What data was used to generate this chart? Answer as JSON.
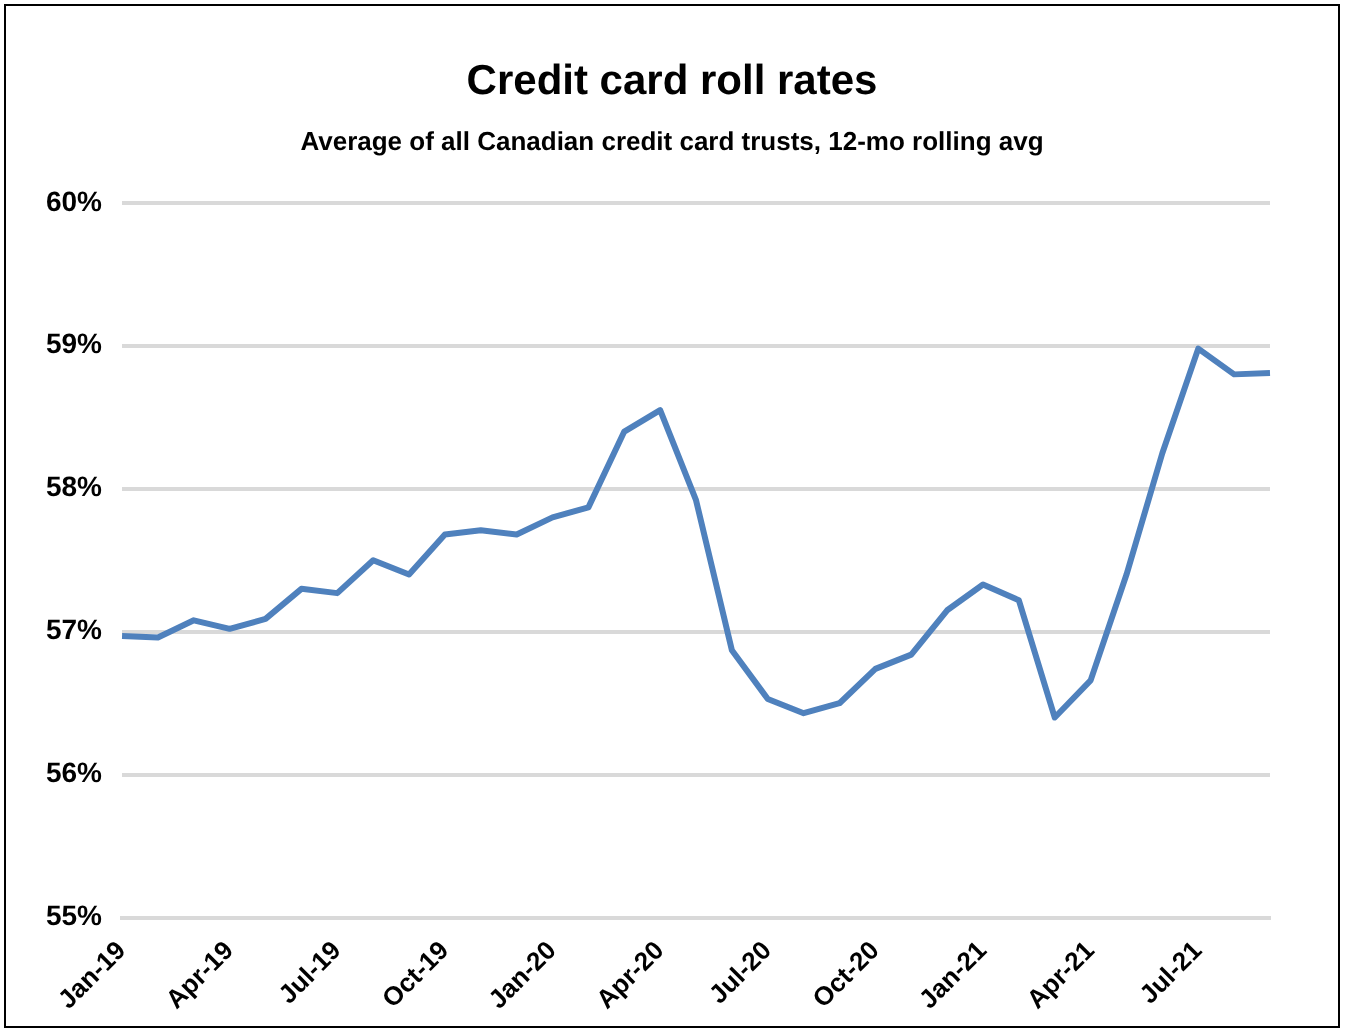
{
  "chart_data": {
    "type": "line",
    "title": "Credit card roll rates",
    "subtitle": "Average of all Canadian credit card trusts, 12-mo rolling avg",
    "categories": [
      "Jan-19",
      null,
      null,
      "Apr-19",
      null,
      null,
      "Jul-19",
      null,
      null,
      "Oct-19",
      null,
      null,
      "Jan-20",
      null,
      null,
      "Apr-20",
      null,
      null,
      "Jul-20",
      null,
      null,
      "Oct-20",
      null,
      null,
      "Jan-21",
      null,
      null,
      "Apr-21",
      null,
      null,
      "Jul-21",
      null,
      null
    ],
    "series": [
      {
        "color": "#4f81bd",
        "values": [
          56.97,
          56.96,
          57.08,
          57.02,
          57.09,
          57.3,
          57.27,
          57.5,
          57.4,
          57.68,
          57.71,
          57.68,
          57.8,
          57.87,
          58.4,
          58.55,
          57.92,
          56.87,
          56.53,
          56.43,
          56.5,
          56.74,
          56.84,
          57.15,
          57.33,
          57.22,
          56.4,
          56.66,
          57.4,
          58.25,
          58.98,
          58.8,
          58.81
        ]
      }
    ],
    "ylim": [
      55,
      60
    ],
    "yticks": [
      {
        "value": 55,
        "label": "55%"
      },
      {
        "value": 56,
        "label": "56%"
      },
      {
        "value": 57,
        "label": "57%"
      },
      {
        "value": 58,
        "label": "58%"
      },
      {
        "value": 59,
        "label": "59%"
      },
      {
        "value": 60,
        "label": "60%"
      }
    ],
    "grid": "y",
    "legend": false,
    "marker": "none",
    "line_style": "solid"
  }
}
